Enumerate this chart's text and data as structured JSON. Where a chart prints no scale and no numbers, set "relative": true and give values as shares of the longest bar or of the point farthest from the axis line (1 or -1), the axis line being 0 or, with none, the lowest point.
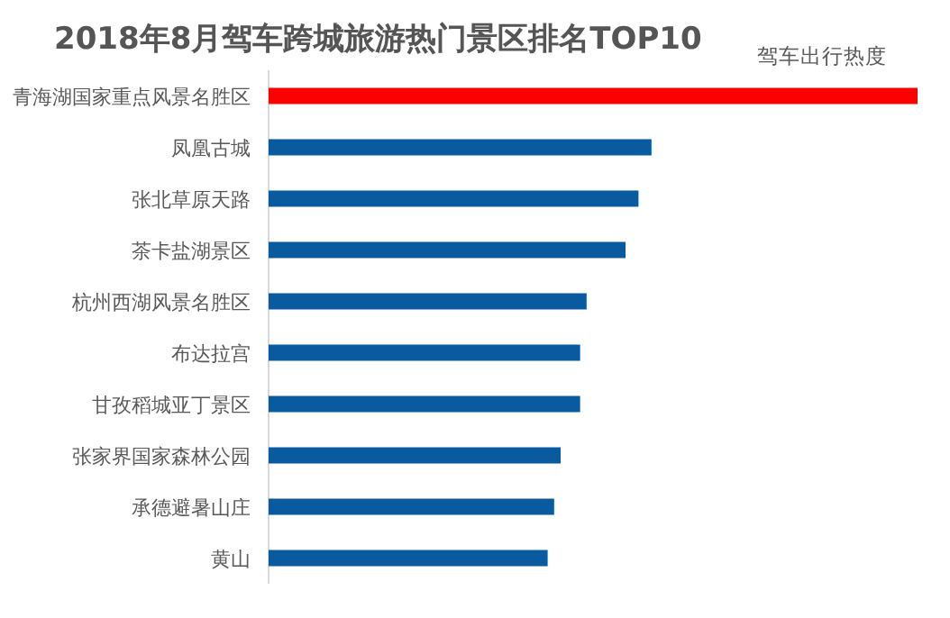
{
  "chart_data": {
    "type": "bar",
    "orientation": "horizontal",
    "relative": true,
    "title": "2018年8月驾车跨城旅游热门景区排名TOP10",
    "categories": [
      "青海湖国家重点风景名胜区",
      "凤凰古城",
      "张北草原天路",
      "茶卡盐湖景区",
      "杭州西湖风景名胜区",
      "布达拉宫",
      "甘孜稻城亚丁景区",
      "张家界国家森林公园",
      "承德避暑山庄",
      "黄山"
    ],
    "series": [
      {
        "name": "驾车出行热度",
        "colors": [
          "#ff0000",
          "#0a5aa0",
          "#0a5aa0",
          "#0a5aa0",
          "#0a5aa0",
          "#0a5aa0",
          "#0a5aa0",
          "#0a5aa0",
          "#0a5aa0",
          "#0a5aa0"
        ],
        "values": [
          1,
          0.59,
          0.57,
          0.55,
          0.49,
          0.48,
          0.48,
          0.45,
          0.44,
          0.43
        ]
      }
    ],
    "legend": "top right"
  }
}
